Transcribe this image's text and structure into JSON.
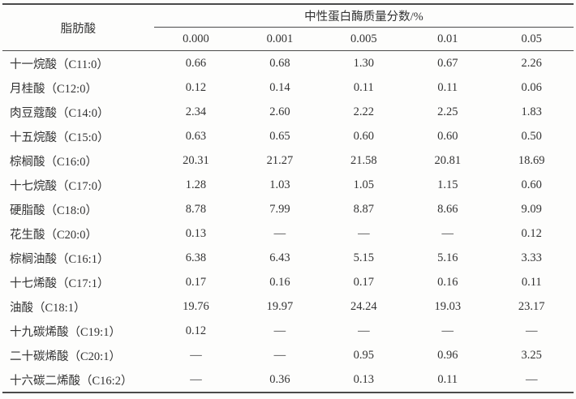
{
  "table": {
    "row_header": "脂肪酸",
    "group_header": "中性蛋白酶质量分数/%",
    "columns": [
      "0.000",
      "0.001",
      "0.005",
      "0.01",
      "0.05"
    ],
    "rows": [
      {
        "name": "十一烷酸（C11:0）",
        "values": [
          "0.66",
          "0.68",
          "1.30",
          "0.67",
          "2.26"
        ]
      },
      {
        "name": "月桂酸（C12:0）",
        "values": [
          "0.12",
          "0.14",
          "0.11",
          "0.11",
          "0.06"
        ]
      },
      {
        "name": "肉豆蔻酸（C14:0）",
        "values": [
          "2.34",
          "2.60",
          "2.22",
          "2.25",
          "1.83"
        ]
      },
      {
        "name": "十五烷酸（C15:0）",
        "values": [
          "0.63",
          "0.65",
          "0.60",
          "0.60",
          "0.50"
        ]
      },
      {
        "name": "棕榈酸（C16:0）",
        "values": [
          "20.31",
          "21.27",
          "21.58",
          "20.81",
          "18.69"
        ]
      },
      {
        "name": "十七烷酸（C17:0）",
        "values": [
          "1.28",
          "1.03",
          "1.05",
          "1.15",
          "0.60"
        ]
      },
      {
        "name": "硬脂酸（C18:0）",
        "values": [
          "8.78",
          "7.99",
          "8.87",
          "8.66",
          "9.09"
        ]
      },
      {
        "name": "花生酸（C20:0）",
        "values": [
          "0.13",
          "—",
          "—",
          "—",
          "0.12"
        ]
      },
      {
        "name": "棕榈油酸（C16:1）",
        "values": [
          "6.38",
          "6.43",
          "5.15",
          "5.16",
          "3.33"
        ]
      },
      {
        "name": "十七烯酸（C17:1）",
        "values": [
          "0.17",
          "0.16",
          "0.17",
          "0.16",
          "0.11"
        ]
      },
      {
        "name": "油酸（C18:1）",
        "values": [
          "19.76",
          "19.97",
          "24.24",
          "19.03",
          "23.17"
        ]
      },
      {
        "name": "十九碳烯酸（C19:1）",
        "values": [
          "0.12",
          "—",
          "—",
          "—",
          "—"
        ]
      },
      {
        "name": "二十碳烯酸（C20:1）",
        "values": [
          "—",
          "—",
          "0.95",
          "0.96",
          "3.25"
        ]
      },
      {
        "name": "十六碳二烯酸（C16:2）",
        "values": [
          "—",
          "0.36",
          "0.13",
          "0.11",
          "—"
        ]
      }
    ]
  }
}
